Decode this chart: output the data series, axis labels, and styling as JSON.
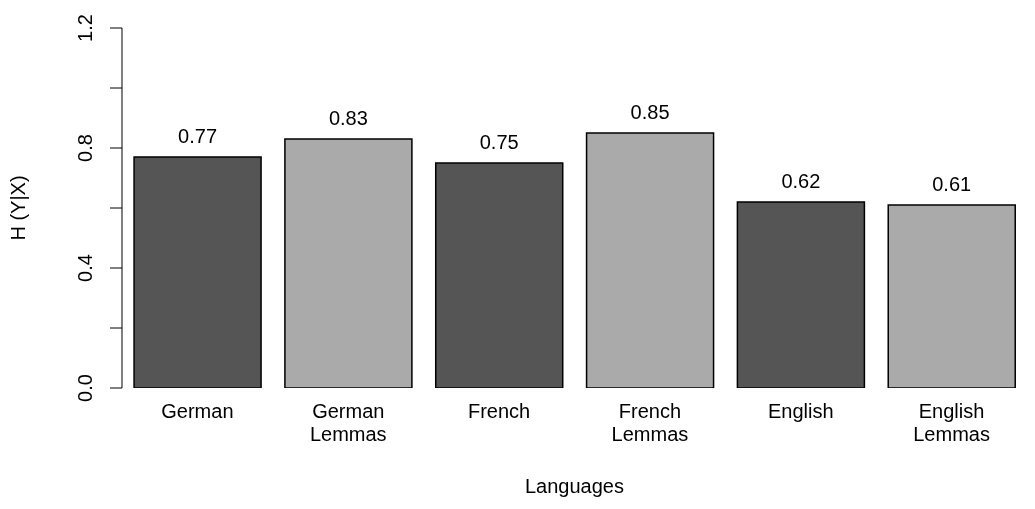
{
  "chart_data": {
    "type": "bar",
    "xlabel": "Languages",
    "ylabel": "H (Y|X)",
    "categories": [
      "German",
      "German Lemmas",
      "French",
      "French Lemmas",
      "English",
      "English Lemmas"
    ],
    "values": [
      0.77,
      0.83,
      0.75,
      0.85,
      0.62,
      0.61
    ],
    "colors": [
      "#555555",
      "#aaaaaa",
      "#555555",
      "#aaaaaa",
      "#555555",
      "#aaaaaa"
    ],
    "ylim": [
      0,
      1.2
    ],
    "yticks": [
      {
        "value": 0,
        "label": "0.0"
      },
      {
        "value": 0.2,
        "label": null
      },
      {
        "value": 0.4,
        "label": "0.4"
      },
      {
        "value": 0.6,
        "label": null
      },
      {
        "value": 0.8,
        "label": "0.8"
      },
      {
        "value": 1.0,
        "label": null
      },
      {
        "value": 1.2,
        "label": "1.2"
      }
    ],
    "data_labels": true,
    "grid": false,
    "legend": false
  }
}
